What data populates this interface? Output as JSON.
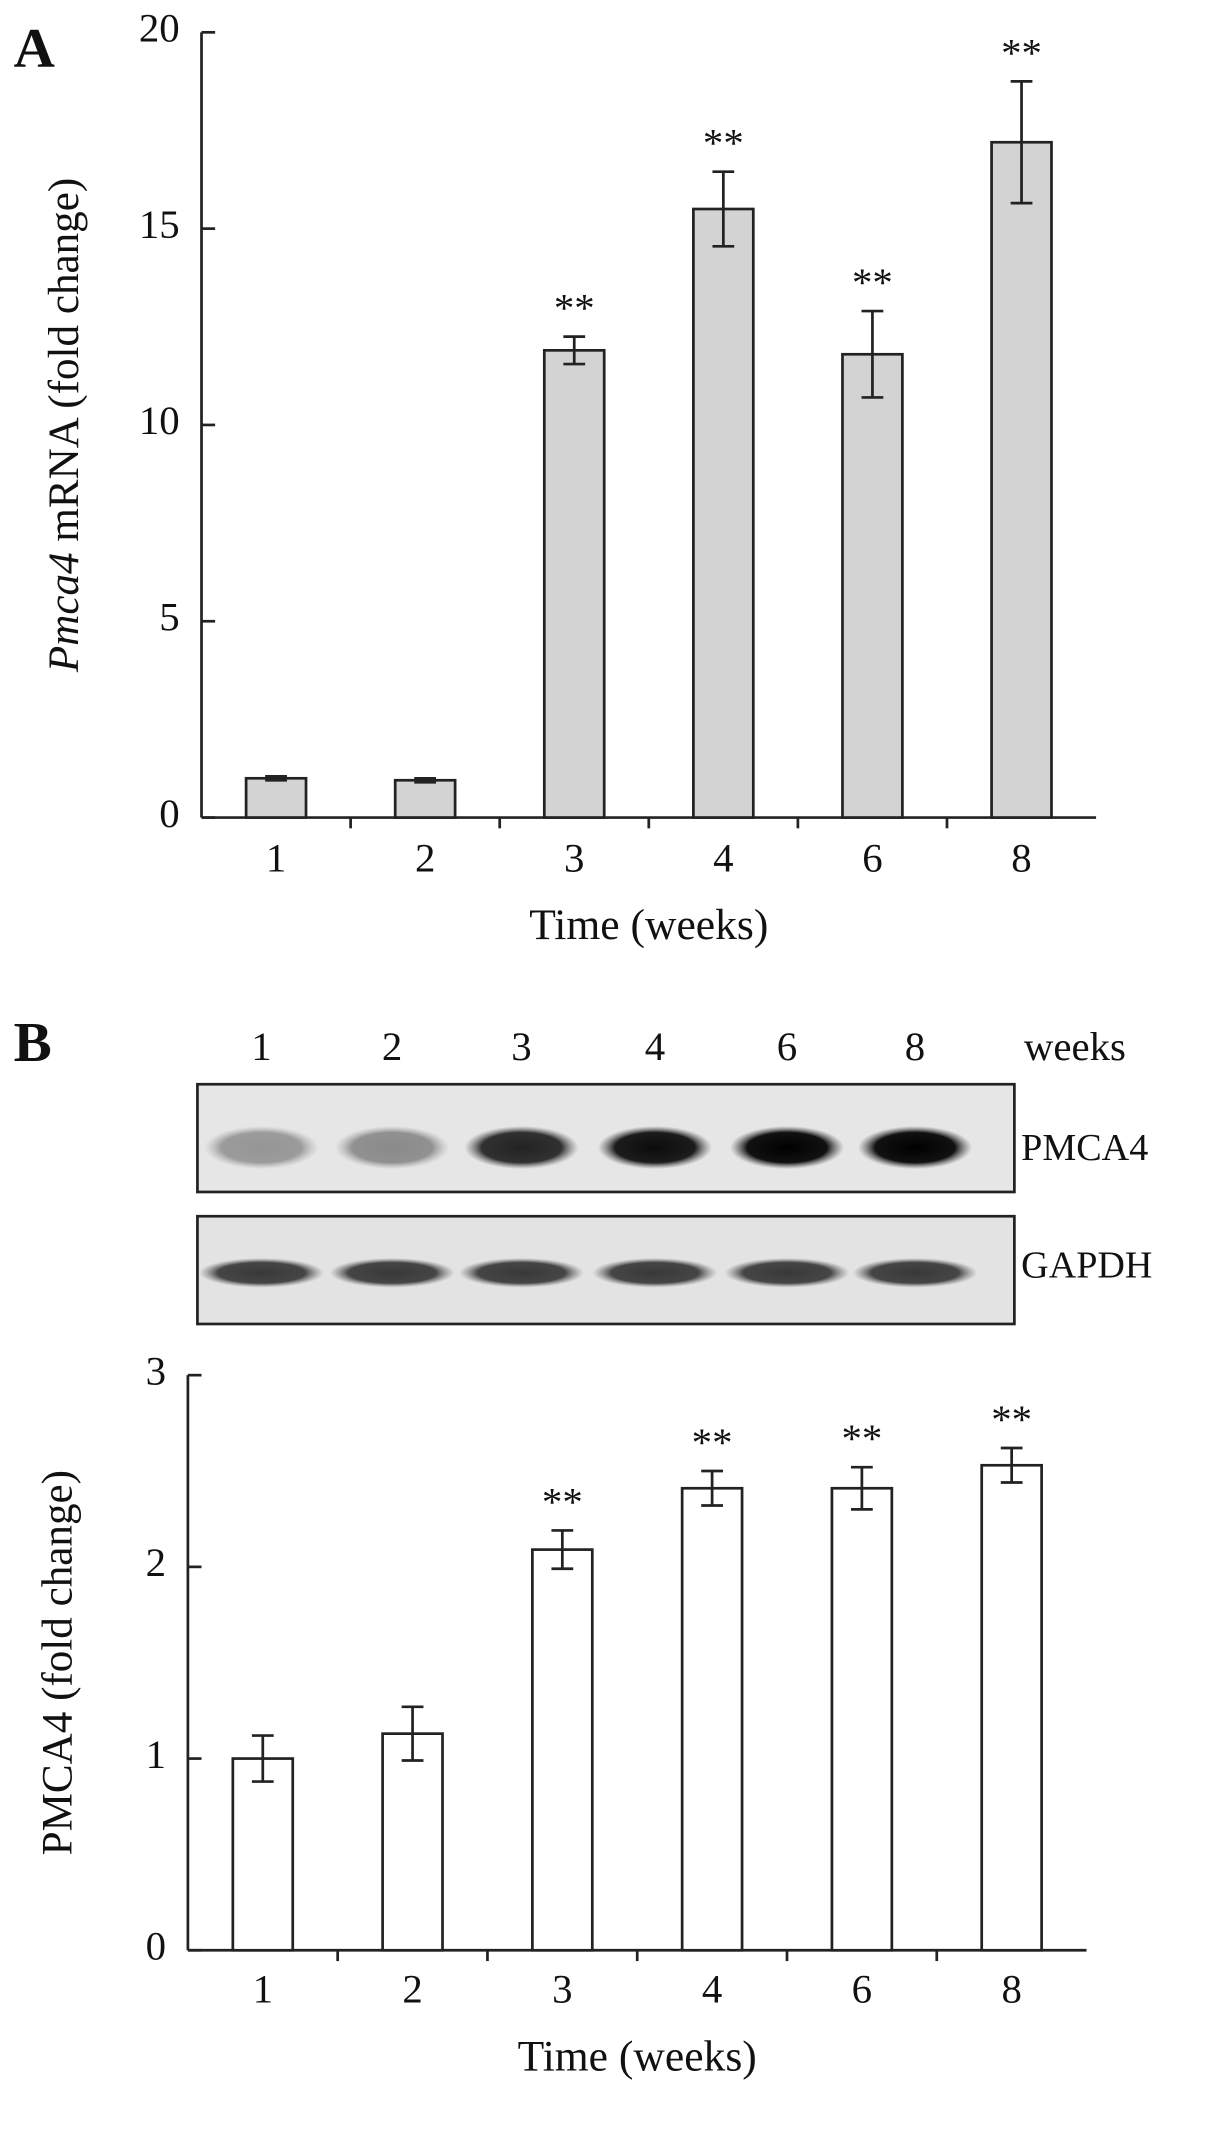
{
  "chart_data": [
    {
      "type": "bar",
      "panel": "A",
      "ylabel_italic": "Pmca4",
      "ylabel": "mRNA (fold change)",
      "xlabel": "Time (weeks)",
      "categories": [
        "1",
        "2",
        "3",
        "4",
        "6",
        "8"
      ],
      "values": [
        1.0,
        0.95,
        11.9,
        15.5,
        11.8,
        17.2
      ],
      "errors": [
        0.05,
        0.05,
        0.35,
        0.95,
        1.1,
        1.55
      ],
      "significance": [
        null,
        null,
        "**",
        "**",
        "**",
        "**"
      ],
      "color": "#d3d3d3",
      "ylim": [
        0,
        20
      ],
      "yticks": [
        0,
        5,
        10,
        15,
        20
      ]
    },
    {
      "type": "bar",
      "panel": "B",
      "blot": {
        "lanes": [
          "1",
          "2",
          "3",
          "4",
          "6",
          "8"
        ],
        "unit": "weeks",
        "rows": [
          "PMCA4",
          "GAPDH"
        ]
      },
      "ylabel": "PMCA4 (fold change)",
      "xlabel": "Time (weeks)",
      "categories": [
        "1",
        "2",
        "3",
        "4",
        "6",
        "8"
      ],
      "values": [
        1.0,
        1.13,
        2.09,
        2.41,
        2.41,
        2.53
      ],
      "errors": [
        0.12,
        0.14,
        0.1,
        0.09,
        0.11,
        0.09
      ],
      "significance": [
        null,
        null,
        "**",
        "**",
        "**",
        "**"
      ],
      "color": "#ffffff",
      "ylim": [
        0,
        3
      ],
      "yticks": [
        0,
        1,
        2,
        3
      ]
    }
  ]
}
